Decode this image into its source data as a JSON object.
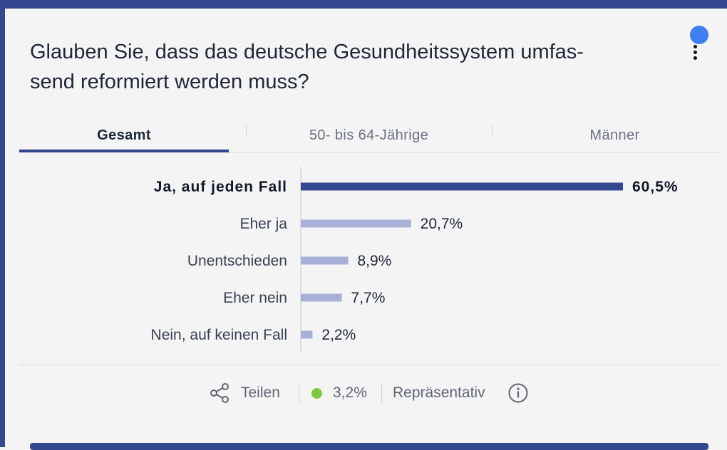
{
  "question": "Glauben Sie, dass das deutsche Gesundheitssystem umfas-send reformiert werden muss?",
  "question_lines": [
    "Glauben Sie, dass das deutsche Gesundheitssystem umfas-",
    "send reformiert werden muss?"
  ],
  "tabs": [
    {
      "label": "Gesamt",
      "active": true
    },
    {
      "label": "50- bis 64-Jährige",
      "active": false
    },
    {
      "label": "Männer",
      "active": false
    }
  ],
  "chart_data": {
    "type": "bar",
    "orientation": "horizontal",
    "categories": [
      "Ja, auf jeden Fall",
      "Eher ja",
      "Unentschieden",
      "Eher nein",
      "Nein, auf keinen Fall"
    ],
    "values": [
      60.5,
      20.7,
      8.9,
      7.7,
      2.2
    ],
    "value_labels": [
      "60,5%",
      "20,7%",
      "8,9%",
      "7,7%",
      "2,2%"
    ],
    "unit": "%",
    "highlight_index": 0,
    "xlim": [
      0,
      60.5
    ],
    "colors": {
      "highlight": "#34488f",
      "normal": "#a7b0d6",
      "axis": "#d5d7dc"
    }
  },
  "footer": {
    "share_label": "Teilen",
    "share_icon": "share-icon",
    "error_margin": "3,2%",
    "status_color": "#7ec93e",
    "representative_label": "Repräsentativ",
    "info_icon": "info-icon"
  },
  "colors": {
    "brand": "#34488f",
    "notification": "#3f7ef0"
  }
}
